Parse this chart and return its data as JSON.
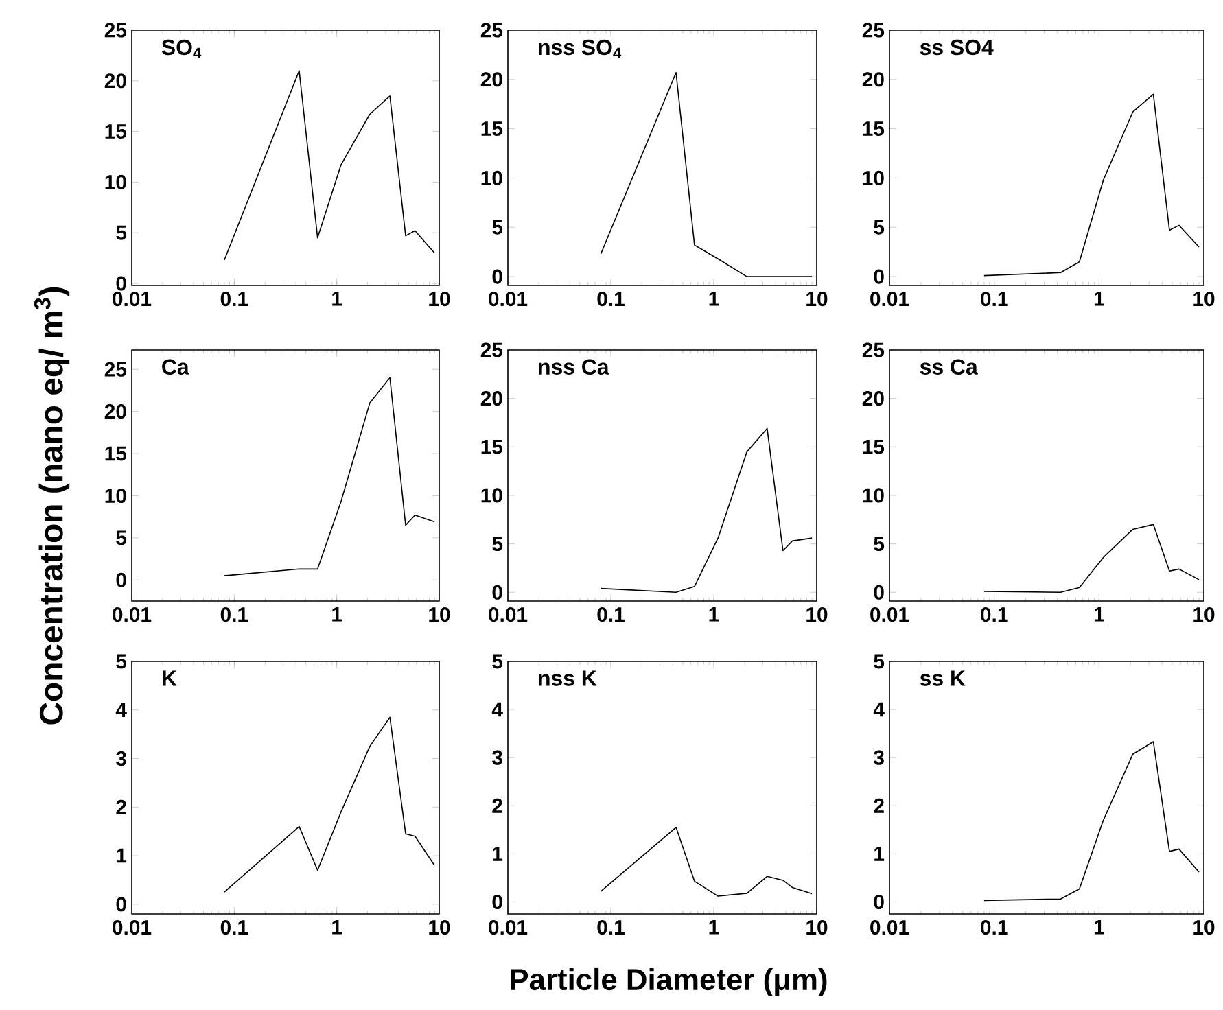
{
  "chart_data": [
    {
      "type": "line",
      "title": "SO$_{4}$",
      "x": [
        0.08,
        0.43,
        0.65,
        1.1,
        2.1,
        3.3,
        4.7,
        5.8,
        9.0
      ],
      "series": [
        {
          "color": "#000000",
          "values": [
            2.3,
            21,
            4.5,
            11.7,
            16.7,
            18.5,
            4.7,
            5.2,
            3.0
          ]
        }
      ],
      "log": "x",
      "xlim": [
        0.01,
        10
      ],
      "xticks": [
        0.01,
        0.1,
        1,
        10
      ],
      "ylim": [
        -0.2,
        25
      ],
      "yticks": [
        0,
        5,
        10,
        15,
        20,
        25
      ]
    },
    {
      "type": "line",
      "title": "nss SO$_{4}$",
      "x": [
        0.08,
        0.43,
        0.65,
        1.1,
        2.1,
        3.3,
        4.7,
        5.8,
        9.0
      ],
      "series": [
        {
          "color": "#000000",
          "values": [
            2.3,
            20.7,
            3.2,
            1.8,
            0,
            0,
            0,
            0,
            0
          ]
        }
      ],
      "log": "x",
      "xlim": [
        0.01,
        10
      ],
      "xticks": [
        0.01,
        0.1,
        1,
        10
      ],
      "ylim": [
        -0.9,
        25
      ],
      "yticks": [
        0,
        5,
        10,
        15,
        20,
        25
      ]
    },
    {
      "type": "line",
      "title": "ss SO4",
      "x": [
        0.08,
        0.43,
        0.65,
        1.1,
        2.1,
        3.3,
        4.7,
        5.8,
        9.0
      ],
      "series": [
        {
          "color": "#000000",
          "values": [
            0.1,
            0.4,
            1.5,
            9.8,
            16.7,
            18.5,
            4.7,
            5.2,
            3.0
          ]
        }
      ],
      "log": "x",
      "xlim": [
        0.01,
        10
      ],
      "xticks": [
        0.01,
        0.1,
        1,
        10
      ],
      "ylim": [
        -0.9,
        25
      ],
      "yticks": [
        0,
        5,
        10,
        15,
        20,
        25
      ]
    },
    {
      "type": "line",
      "title": "Ca",
      "ylabel": "Concentration (nano eq/ m$^{3}$)",
      "x": [
        0.08,
        0.43,
        0.65,
        1.1,
        2.1,
        3.3,
        4.7,
        5.8,
        9.0
      ],
      "series": [
        {
          "color": "#000000",
          "values": [
            0.5,
            1.3,
            1.3,
            9.3,
            21,
            24,
            6.5,
            7.7,
            6.9
          ]
        }
      ],
      "log": "x",
      "xlim": [
        0.01,
        10
      ],
      "xticks": [
        0.01,
        0.1,
        1,
        10
      ],
      "ylim": [
        -2.5,
        27.3
      ],
      "yticks": [
        0,
        5,
        10,
        15,
        20,
        25
      ]
    },
    {
      "type": "line",
      "title": "nss Ca",
      "x": [
        0.08,
        0.43,
        0.65,
        1.1,
        2.1,
        3.3,
        4.7,
        5.8,
        9.0
      ],
      "series": [
        {
          "color": "#000000",
          "values": [
            0.4,
            0.0,
            0.6,
            5.6,
            14.5,
            16.9,
            4.3,
            5.3,
            5.6
          ]
        }
      ],
      "log": "x",
      "xlim": [
        0.01,
        10
      ],
      "xticks": [
        0.01,
        0.1,
        1,
        10
      ],
      "ylim": [
        -0.9,
        25
      ],
      "yticks": [
        0,
        5,
        10,
        15,
        20,
        25
      ]
    },
    {
      "type": "line",
      "title": "ss Ca",
      "x": [
        0.08,
        0.43,
        0.65,
        1.1,
        2.1,
        3.3,
        4.7,
        5.8,
        9.0
      ],
      "series": [
        {
          "color": "#000000",
          "values": [
            0.1,
            0.0,
            0.5,
            3.6,
            6.5,
            7.0,
            2.2,
            2.4,
            1.3
          ]
        }
      ],
      "log": "x",
      "xlim": [
        0.01,
        10
      ],
      "xticks": [
        0.01,
        0.1,
        1,
        10
      ],
      "ylim": [
        -0.9,
        25
      ],
      "yticks": [
        0,
        5,
        10,
        15,
        20,
        25
      ]
    },
    {
      "type": "line",
      "title": "K",
      "x": [
        0.08,
        0.43,
        0.65,
        1.1,
        2.1,
        3.3,
        4.7,
        5.8,
        9.0
      ],
      "series": [
        {
          "color": "#000000",
          "values": [
            0.25,
            1.6,
            0.7,
            1.9,
            3.25,
            3.85,
            1.45,
            1.4,
            0.8
          ]
        }
      ],
      "log": "x",
      "xlim": [
        0.01,
        10
      ],
      "xticks": [
        0.01,
        0.1,
        1,
        10
      ],
      "ylim": [
        -0.2,
        5
      ],
      "yticks": [
        0,
        1,
        2,
        3,
        4,
        5
      ]
    },
    {
      "type": "line",
      "title": "nss K",
      "xlabel": "Particle Diameter (μm)",
      "x": [
        0.08,
        0.43,
        0.65,
        1.1,
        2.1,
        3.3,
        4.7,
        5.8,
        9.0
      ],
      "series": [
        {
          "color": "#000000",
          "values": [
            0.22,
            1.55,
            0.43,
            0.12,
            0.18,
            0.53,
            0.45,
            0.3,
            0.17
          ]
        }
      ],
      "log": "x",
      "xlim": [
        0.01,
        10
      ],
      "xticks": [
        0.01,
        0.1,
        1,
        10
      ],
      "ylim": [
        -0.25,
        5
      ],
      "yticks": [
        0,
        1,
        2,
        3,
        4,
        5
      ]
    },
    {
      "type": "line",
      "title": "ss K",
      "x": [
        0.08,
        0.43,
        0.65,
        1.1,
        2.1,
        3.3,
        4.7,
        5.8,
        9.0
      ],
      "series": [
        {
          "color": "#000000",
          "values": [
            0.03,
            0.06,
            0.27,
            1.7,
            3.07,
            3.33,
            1.05,
            1.1,
            0.62
          ]
        }
      ],
      "log": "x",
      "xlim": [
        0.01,
        10
      ],
      "xticks": [
        0.01,
        0.1,
        1,
        10
      ],
      "ylim": [
        -0.25,
        5
      ],
      "yticks": [
        0,
        1,
        2,
        3,
        4,
        5
      ]
    }
  ]
}
